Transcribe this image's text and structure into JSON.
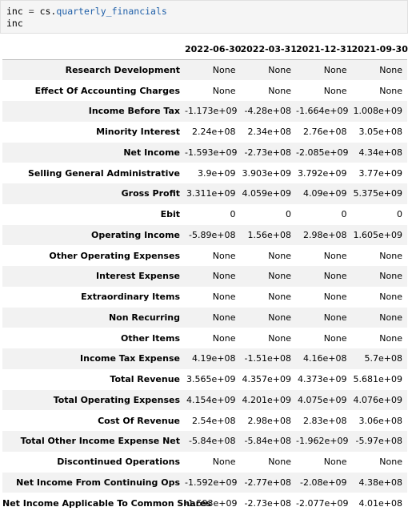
{
  "code": {
    "line1": {
      "var": "inc",
      "op": " = ",
      "module": "cs.",
      "attr": "quarterly_financials"
    },
    "line2": "inc"
  },
  "table": {
    "columns": [
      "2022-06-30",
      "2022-03-31",
      "2021-12-31",
      "2021-09-30"
    ],
    "rows": [
      {
        "label": "Research Development",
        "values": [
          "None",
          "None",
          "None",
          "None"
        ]
      },
      {
        "label": "Effect Of Accounting Charges",
        "values": [
          "None",
          "None",
          "None",
          "None"
        ]
      },
      {
        "label": "Income Before Tax",
        "values": [
          "-1.173e+09",
          "-4.28e+08",
          "-1.664e+09",
          "1.008e+09"
        ]
      },
      {
        "label": "Minority Interest",
        "values": [
          "2.24e+08",
          "2.34e+08",
          "2.76e+08",
          "3.05e+08"
        ]
      },
      {
        "label": "Net Income",
        "values": [
          "-1.593e+09",
          "-2.73e+08",
          "-2.085e+09",
          "4.34e+08"
        ]
      },
      {
        "label": "Selling General Administrative",
        "values": [
          "3.9e+09",
          "3.903e+09",
          "3.792e+09",
          "3.77e+09"
        ]
      },
      {
        "label": "Gross Profit",
        "values": [
          "3.311e+09",
          "4.059e+09",
          "4.09e+09",
          "5.375e+09"
        ]
      },
      {
        "label": "Ebit",
        "values": [
          "0",
          "0",
          "0",
          "0"
        ]
      },
      {
        "label": "Operating Income",
        "values": [
          "-5.89e+08",
          "1.56e+08",
          "2.98e+08",
          "1.605e+09"
        ]
      },
      {
        "label": "Other Operating Expenses",
        "values": [
          "None",
          "None",
          "None",
          "None"
        ]
      },
      {
        "label": "Interest Expense",
        "values": [
          "None",
          "None",
          "None",
          "None"
        ]
      },
      {
        "label": "Extraordinary Items",
        "values": [
          "None",
          "None",
          "None",
          "None"
        ]
      },
      {
        "label": "Non Recurring",
        "values": [
          "None",
          "None",
          "None",
          "None"
        ]
      },
      {
        "label": "Other Items",
        "values": [
          "None",
          "None",
          "None",
          "None"
        ]
      },
      {
        "label": "Income Tax Expense",
        "values": [
          "4.19e+08",
          "-1.51e+08",
          "4.16e+08",
          "5.7e+08"
        ]
      },
      {
        "label": "Total Revenue",
        "values": [
          "3.565e+09",
          "4.357e+09",
          "4.373e+09",
          "5.681e+09"
        ]
      },
      {
        "label": "Total Operating Expenses",
        "values": [
          "4.154e+09",
          "4.201e+09",
          "4.075e+09",
          "4.076e+09"
        ]
      },
      {
        "label": "Cost Of Revenue",
        "values": [
          "2.54e+08",
          "2.98e+08",
          "2.83e+08",
          "3.06e+08"
        ]
      },
      {
        "label": "Total Other Income Expense Net",
        "values": [
          "-5.84e+08",
          "-5.84e+08",
          "-1.962e+09",
          "-5.97e+08"
        ]
      },
      {
        "label": "Discontinued Operations",
        "values": [
          "None",
          "None",
          "None",
          "None"
        ]
      },
      {
        "label": "Net Income From Continuing Ops",
        "values": [
          "-1.592e+09",
          "-2.77e+08",
          "-2.08e+09",
          "4.38e+08"
        ]
      },
      {
        "label": "Net Income Applicable To Common Shares",
        "values": [
          "-1.593e+09",
          "-2.73e+08",
          "-2.077e+09",
          "4.01e+08"
        ]
      }
    ]
  }
}
